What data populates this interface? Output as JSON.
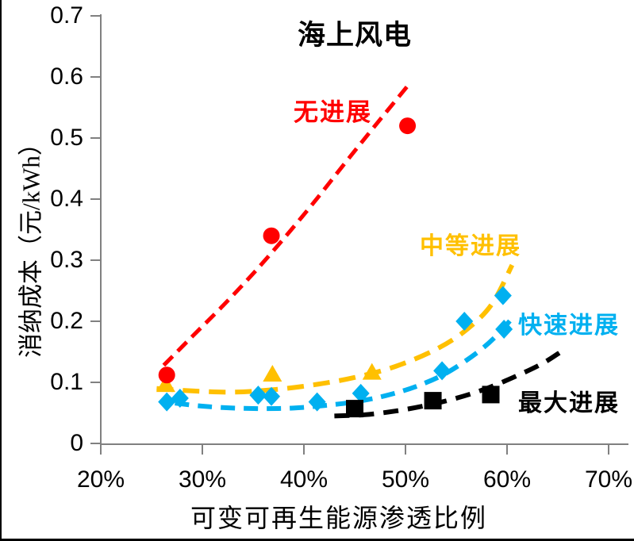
{
  "chart_data": {
    "type": "scatter",
    "title": "海上风电",
    "xlabel": "可变可再生能源渗透比例",
    "ylabel": "消纳成本（元/kWh）",
    "xlim": [
      20,
      70
    ],
    "ylim": [
      0,
      0.7
    ],
    "grid": false,
    "legend_position": "inline-annotations",
    "axis_color": "#808080",
    "x_tick_values": [
      20,
      30,
      40,
      50,
      60,
      70
    ],
    "x_tick_labels": [
      "20%",
      "30%",
      "40%",
      "50%",
      "60%",
      "70%"
    ],
    "y_tick_values": [
      0,
      0.1,
      0.2,
      0.3,
      0.4,
      0.5,
      0.6,
      0.7
    ],
    "y_tick_labels": [
      "0",
      "0.1",
      "0.2",
      "0.3",
      "0.4",
      "0.5",
      "0.6",
      "0.7"
    ],
    "series": [
      {
        "name": "无进展",
        "color": "#FF0000",
        "marker": "circle",
        "points": [
          [
            26.5,
            0.112
          ],
          [
            36.8,
            0.34
          ],
          [
            50.2,
            0.52
          ]
        ],
        "trend": [
          [
            26.2,
            0.128
          ],
          [
            29,
            0.175
          ],
          [
            32,
            0.225
          ],
          [
            35,
            0.278
          ],
          [
            38,
            0.335
          ],
          [
            41,
            0.395
          ],
          [
            44,
            0.458
          ],
          [
            47,
            0.52
          ],
          [
            50.2,
            0.585
          ]
        ]
      },
      {
        "name": "中等进展",
        "color": "#FFC000",
        "marker": "triangle",
        "points": [
          [
            26.4,
            0.096
          ],
          [
            36.9,
            0.113
          ],
          [
            46.7,
            0.116
          ]
        ],
        "trend": [
          [
            25.5,
            0.09
          ],
          [
            29,
            0.086
          ],
          [
            33,
            0.084
          ],
          [
            37,
            0.088
          ],
          [
            41,
            0.096
          ],
          [
            45,
            0.108
          ],
          [
            49,
            0.126
          ],
          [
            53,
            0.154
          ],
          [
            56,
            0.186
          ],
          [
            58.5,
            0.228
          ],
          [
            60.5,
            0.292
          ]
        ]
      },
      {
        "name": "快速进展",
        "color": "#00B0F0",
        "marker": "diamond",
        "points": [
          [
            26.5,
            0.068
          ],
          [
            27.8,
            0.074
          ],
          [
            35.5,
            0.079
          ],
          [
            36.8,
            0.077
          ],
          [
            41.3,
            0.068
          ],
          [
            45.6,
            0.082
          ],
          [
            53.6,
            0.119
          ],
          [
            55.8,
            0.2
          ],
          [
            59.6,
            0.242
          ],
          [
            59.7,
            0.187
          ]
        ],
        "trend": [
          [
            27.3,
            0.066
          ],
          [
            30,
            0.061
          ],
          [
            33,
            0.058
          ],
          [
            36,
            0.057
          ],
          [
            39,
            0.058
          ],
          [
            42,
            0.062
          ],
          [
            45,
            0.068
          ],
          [
            48,
            0.078
          ],
          [
            51,
            0.093
          ],
          [
            54,
            0.115
          ],
          [
            57,
            0.148
          ],
          [
            59,
            0.177
          ],
          [
            60.7,
            0.209
          ]
        ]
      },
      {
        "name": "最大进展",
        "color": "#000000",
        "marker": "square",
        "points": [
          [
            45.0,
            0.057
          ],
          [
            52.7,
            0.07
          ],
          [
            58.4,
            0.08
          ]
        ],
        "trend": [
          [
            43,
            0.045
          ],
          [
            46,
            0.047
          ],
          [
            49,
            0.053
          ],
          [
            52,
            0.062
          ],
          [
            55,
            0.074
          ],
          [
            58,
            0.09
          ],
          [
            61,
            0.111
          ],
          [
            63.5,
            0.131
          ],
          [
            65.3,
            0.15
          ]
        ]
      }
    ]
  }
}
